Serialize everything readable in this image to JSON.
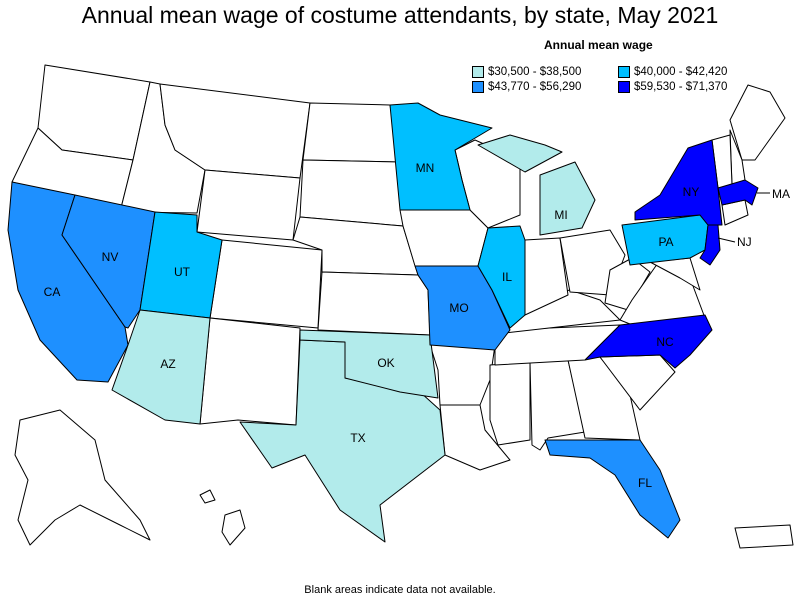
{
  "title": "Annual mean wage of costume attendants, by state, May 2021",
  "legend": {
    "title": "Annual mean wage",
    "items": [
      {
        "label": "$30,500 - $38,500",
        "color": "#b2ebeb"
      },
      {
        "label": "$40,000 - $42,420",
        "color": "#00bfff"
      },
      {
        "label": "$43,770 - $56,290",
        "color": "#1e90ff"
      },
      {
        "label": "$59,530 - $71,370",
        "color": "#0000ff"
      }
    ]
  },
  "footnote": "Blank areas indicate data not available.",
  "states": {
    "CA": {
      "label": "CA",
      "color": "#1e90ff"
    },
    "NV": {
      "label": "NV",
      "color": "#1e90ff"
    },
    "UT": {
      "label": "UT",
      "color": "#00bfff"
    },
    "AZ": {
      "label": "AZ",
      "color": "#b2ebeb"
    },
    "TX": {
      "label": "TX",
      "color": "#b2ebeb"
    },
    "OK": {
      "label": "OK",
      "color": "#b2ebeb"
    },
    "MN": {
      "label": "MN",
      "color": "#00bfff"
    },
    "MO": {
      "label": "MO",
      "color": "#1e90ff"
    },
    "IL": {
      "label": "IL",
      "color": "#00bfff"
    },
    "MI": {
      "label": "MI",
      "color": "#b2ebeb"
    },
    "FL": {
      "label": "FL",
      "color": "#1e90ff"
    },
    "NC": {
      "label": "NC",
      "color": "#0000ff"
    },
    "PA": {
      "label": "PA",
      "color": "#00bfff"
    },
    "NY": {
      "label": "NY",
      "color": "#0000ff"
    },
    "NJ": {
      "label": "NJ",
      "color": "#0000ff"
    },
    "MA": {
      "label": "MA",
      "color": "#0000ff"
    }
  }
}
